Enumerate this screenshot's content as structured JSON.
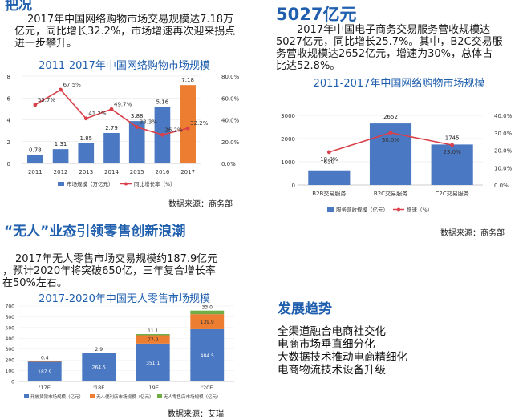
{
  "top_left": {
    "heading_fragment": "把况",
    "paragraph": [
      "2017年中国网络购物市场交易规模达7.18万",
      "亿元，同比增长32.2%，市场增速再次迎来拐点",
      "进一步攀升。"
    ],
    "source": "数据来源：商务部"
  },
  "top_right": {
    "heading": "5027亿元",
    "paragraph": [
      "2017年中国电子商务交易服务营收规模达",
      "5027亿元，同比增长25.7%。其中，B2C交易服",
      "务营收规模达2652亿元，增速为30%，总体占",
      "比达52.8%。"
    ],
    "source": "数据来源：商务部"
  },
  "middle_left": {
    "heading": "“无人”业态引领零售创新浪潮",
    "paragraph": [
      "2017年无人零售市场交易规模约187.9亿元",
      "，预计2020年将突破650亿，三年复合增长率",
      "在50%左右。"
    ],
    "source": "数据来源：艾瑞"
  },
  "trends": {
    "heading": "发展趋势",
    "items": [
      "全渠道融合电商社交化",
      "电商市场垂直细分化",
      "大数据技术推动电商精细化",
      "电商物流技术设备升级"
    ]
  },
  "colors": {
    "blue": "#4a78c2",
    "orange": "#ed7d31",
    "green": "#70ad47",
    "red": "#d9404a",
    "heading": "#1f5fae"
  },
  "chart_data": [
    {
      "type": "bar",
      "title": "2011-2017年中国网络购物市场规模",
      "categories": [
        "2011",
        "2012",
        "2013",
        "2014",
        "2015",
        "2016",
        "2017"
      ],
      "series": [
        {
          "name": "市场规模（万亿元）",
          "values": [
            0.78,
            1.31,
            1.85,
            2.79,
            3.88,
            5.16,
            7.18
          ]
        },
        {
          "name": "同比增长率（%）",
          "type": "line",
          "values": [
            53.7,
            67.5,
            41.2,
            49.7,
            33.3,
            26.2,
            32.2
          ]
        }
      ],
      "ylim": [
        0,
        8
      ],
      "y2lim": [
        0,
        80
      ],
      "yticks": [
        "0",
        "2",
        "4",
        "6",
        "8"
      ],
      "y2ticks": [
        "0.0%",
        "20.0%",
        "40.0%",
        "60.0%",
        "80.0%"
      ],
      "value_labels": [
        "0.78",
        "1.31",
        "1.85",
        "2.79",
        "3.88",
        "5.16",
        "7.18"
      ],
      "rate_labels": [
        "53.7%",
        "67.5%",
        "41.2%",
        "49.7%",
        "33.3%",
        "26.2%",
        "32.2%"
      ]
    },
    {
      "type": "bar",
      "title": "2011-2017年中国网络购物市场规模",
      "categories": [
        "B2B交易服务",
        "B2C交易服务",
        "C2C交易服务"
      ],
      "series": [
        {
          "name": "服务营收规模（亿元）",
          "values": [
            630,
            2652,
            1745
          ]
        },
        {
          "name": "增速（%）",
          "type": "line",
          "values": [
            18.9,
            30.0,
            23.0
          ]
        }
      ],
      "ylim": [
        0,
        3000
      ],
      "y2lim": [
        0,
        40
      ],
      "yticks": [
        "0",
        "1000",
        "2000",
        "3000"
      ],
      "y2ticks": [
        "0.0%",
        "10.0%",
        "20.0%",
        "30.0%",
        "40.0%"
      ],
      "value_labels": [
        "630",
        "2652",
        "1745"
      ],
      "rate_labels": [
        "18.9%",
        "30.0%",
        "23.0%"
      ]
    },
    {
      "type": "bar",
      "stacked": true,
      "title": "2017-2020年中国无人零售市场规模",
      "categories": [
        "'17E",
        "'18E",
        "'19E",
        "'20E"
      ],
      "series": [
        {
          "name": "开放货架市场规模（亿元）",
          "values": [
            187.9,
            264.5,
            351.1,
            484.5
          ]
        },
        {
          "name": "无人便利店市场规模（亿元）",
          "values": [
            0.4,
            2.9,
            77.0,
            139.9
          ]
        },
        {
          "name": "无人零售店市场规模（亿元）",
          "values": [
            0.0,
            0.0,
            11.1,
            33.0
          ]
        }
      ],
      "ylim": [
        0,
        700
      ],
      "yticks": [
        "0",
        "100",
        "200",
        "300",
        "400",
        "500",
        "600",
        "700"
      ],
      "labels": [
        [
          "187.9",
          "264.5",
          "351.1",
          "484.5"
        ],
        [
          "0.4",
          "2.9",
          "77.0",
          "139.9"
        ],
        [
          "",
          "",
          "11.1",
          "33.0"
        ]
      ]
    }
  ]
}
